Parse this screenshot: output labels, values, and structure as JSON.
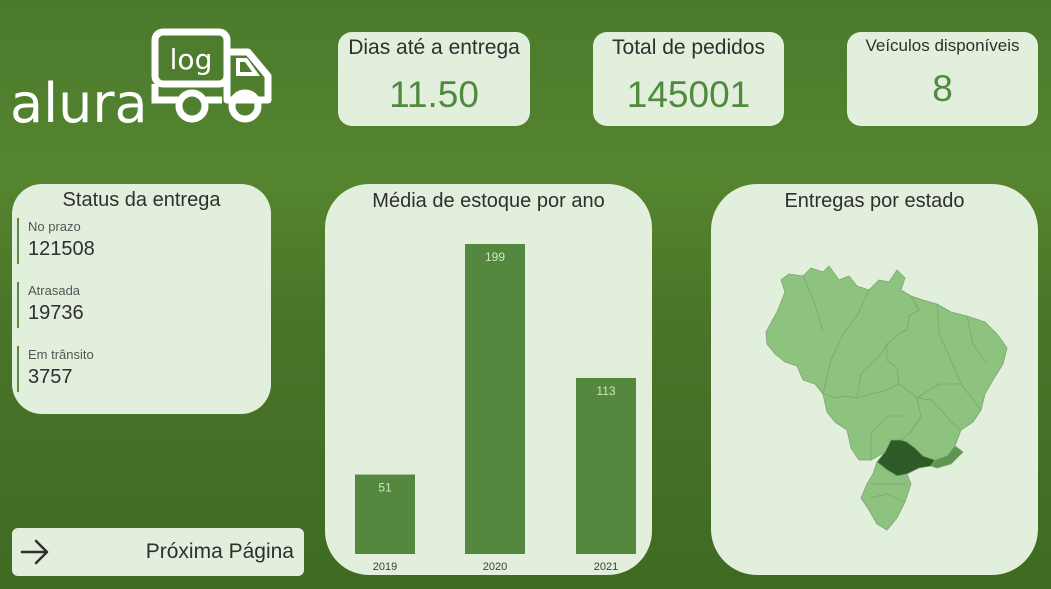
{
  "logo": {
    "word": "alura",
    "badge": "log"
  },
  "kpis": [
    {
      "label": "Dias até a entrega",
      "value": "11.50"
    },
    {
      "label": "Total de pedidos",
      "value": "145001"
    },
    {
      "label": "Veículos disponíveis",
      "value": "8"
    }
  ],
  "status": {
    "title": "Status da entrega",
    "items": [
      {
        "label": "No prazo",
        "value": "121508"
      },
      {
        "label": "Atrasada",
        "value": "19736"
      },
      {
        "label": "Em trânsito",
        "value": "3757"
      }
    ]
  },
  "chart_data": {
    "type": "bar",
    "title": "Média de estoque por ano",
    "categories": [
      "2019",
      "2020",
      "2021"
    ],
    "values": [
      51,
      199,
      113
    ],
    "ylim": [
      0,
      199
    ],
    "bar_color": "#55883f",
    "label_color": "#cfe3c4"
  },
  "map": {
    "title": "Entregas por estado",
    "base_color": "#8ec27f",
    "highlight_color": "#2e5a27",
    "mid_color": "#5e9650"
  },
  "nav": {
    "next_label": "Próxima Página"
  }
}
